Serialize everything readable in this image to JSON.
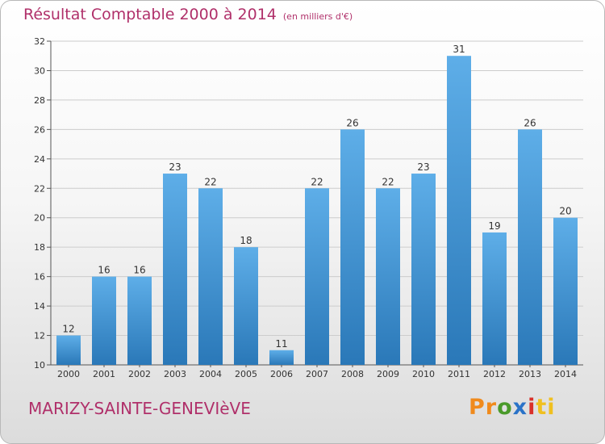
{
  "title": "Résultat Comptable 2000 à 2014",
  "unit": "(en milliers d'€)",
  "town": "MARIZY-SAINTE-GENEVIèVE",
  "logo": {
    "p1": "Pr",
    "p2": "o",
    "p3": "x",
    "p4": "i",
    "p5": "ti"
  },
  "colors": {
    "title": "#b0306a",
    "bar_top": "#5eaee8",
    "bar_bottom": "#2a78b8",
    "grid": "#cccccc"
  },
  "chart_data": {
    "type": "bar",
    "title": "Résultat Comptable 2000 à 2014",
    "xlabel": "",
    "ylabel": "",
    "categories": [
      "2000",
      "2001",
      "2002",
      "2003",
      "2004",
      "2005",
      "2006",
      "2007",
      "2008",
      "2009",
      "2010",
      "2011",
      "2012",
      "2013",
      "2014"
    ],
    "values": [
      12,
      16,
      16,
      23,
      22,
      18,
      11,
      22,
      26,
      22,
      23,
      31,
      19,
      26,
      20
    ],
    "ylim": [
      10,
      32
    ],
    "yticks": [
      10,
      12,
      14,
      16,
      18,
      20,
      22,
      24,
      26,
      28,
      30,
      32
    ],
    "grid": true
  }
}
